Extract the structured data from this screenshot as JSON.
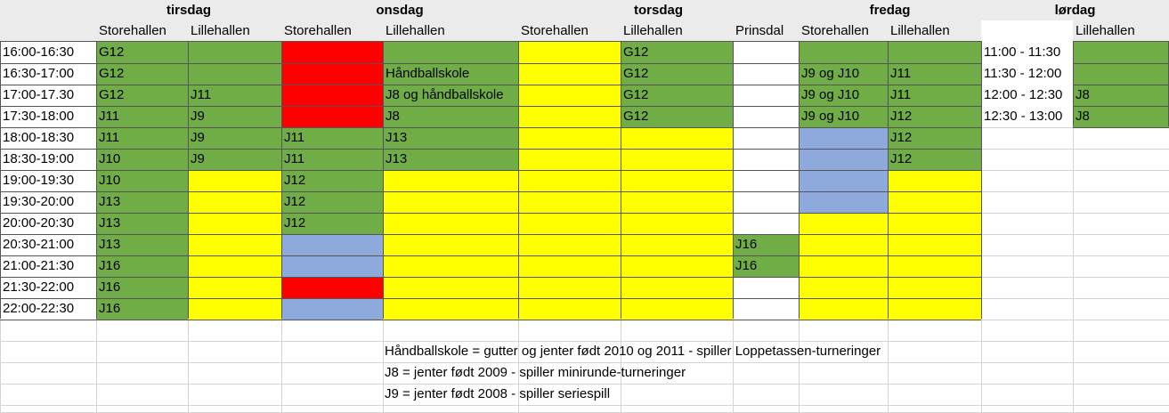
{
  "colors": {
    "green": "#70ad47",
    "red": "#ff0000",
    "yellow": "#ffff00",
    "blue": "#8ea9db",
    "white": "#ffffff",
    "header": "#ebebeb"
  },
  "days": [
    "tirsdag",
    "onsdag",
    "torsdag",
    "fredag",
    "lørdag"
  ],
  "halls": [
    "Storehallen",
    "Lillehallen",
    "Storehallen",
    "Lillehallen",
    "Storehallen",
    "Lillehallen",
    "Prinsdal",
    "Storehallen",
    "Lillehallen",
    "Lillehallen"
  ],
  "times": [
    "16:00-16:30",
    "16:30-17:00",
    "17:00-17.30",
    "17:30-18:00",
    "18:00-18:30",
    "18:30-19:00",
    "19:00-19:30",
    "19:30-20:00",
    "20:00-20:30",
    "20:30-21:00",
    "21:00-21:30",
    "21:30-22:00",
    "22:00-22:30"
  ],
  "rows": [
    [
      [
        "G12",
        "green"
      ],
      [
        "",
        "green"
      ],
      [
        "",
        "red"
      ],
      [
        "",
        "green"
      ],
      [
        "",
        "yellow"
      ],
      [
        "G12",
        "green"
      ],
      [
        "",
        "white"
      ],
      [
        "",
        "green"
      ],
      [
        "",
        "green"
      ]
    ],
    [
      [
        "G12",
        "green"
      ],
      [
        "",
        "green"
      ],
      [
        "",
        "red"
      ],
      [
        "Håndballskole",
        "green"
      ],
      [
        "",
        "yellow"
      ],
      [
        "G12",
        "green"
      ],
      [
        "",
        "white"
      ],
      [
        "J9 og J10",
        "green"
      ],
      [
        "J11",
        "green"
      ]
    ],
    [
      [
        "G12",
        "green"
      ],
      [
        "J11",
        "green"
      ],
      [
        "",
        "red"
      ],
      [
        "J8 og håndballskole",
        "green"
      ],
      [
        "",
        "yellow"
      ],
      [
        "G12",
        "green"
      ],
      [
        "",
        "white"
      ],
      [
        "J9 og J10",
        "green"
      ],
      [
        "J11",
        "green"
      ]
    ],
    [
      [
        "J11",
        "green"
      ],
      [
        "J9",
        "green"
      ],
      [
        "",
        "red"
      ],
      [
        "J8",
        "green"
      ],
      [
        "",
        "yellow"
      ],
      [
        "G12",
        "green"
      ],
      [
        "",
        "white"
      ],
      [
        "J9 og J10",
        "green"
      ],
      [
        "J12",
        "green"
      ]
    ],
    [
      [
        "J11",
        "green"
      ],
      [
        "J9",
        "green"
      ],
      [
        "J11",
        "green"
      ],
      [
        "J13",
        "green"
      ],
      [
        "",
        "yellow"
      ],
      [
        "",
        "yellow"
      ],
      [
        "",
        "white"
      ],
      [
        "",
        "blue"
      ],
      [
        "J12",
        "green"
      ]
    ],
    [
      [
        "J10",
        "green"
      ],
      [
        "J9",
        "green"
      ],
      [
        "J11",
        "green"
      ],
      [
        "J13",
        "green"
      ],
      [
        "",
        "yellow"
      ],
      [
        "",
        "yellow"
      ],
      [
        "",
        "white"
      ],
      [
        "",
        "blue"
      ],
      [
        "J12",
        "green"
      ]
    ],
    [
      [
        "J10",
        "green"
      ],
      [
        "",
        "yellow"
      ],
      [
        "J12",
        "green"
      ],
      [
        "",
        "yellow"
      ],
      [
        "",
        "yellow"
      ],
      [
        "",
        "yellow"
      ],
      [
        "",
        "white"
      ],
      [
        "",
        "blue"
      ],
      [
        "",
        "yellow"
      ]
    ],
    [
      [
        "J13",
        "green"
      ],
      [
        "",
        "yellow"
      ],
      [
        "J12",
        "green"
      ],
      [
        "",
        "yellow"
      ],
      [
        "",
        "yellow"
      ],
      [
        "",
        "yellow"
      ],
      [
        "",
        "white"
      ],
      [
        "",
        "blue"
      ],
      [
        "",
        "yellow"
      ]
    ],
    [
      [
        "J13",
        "green"
      ],
      [
        "",
        "yellow"
      ],
      [
        "J12",
        "green"
      ],
      [
        "",
        "yellow"
      ],
      [
        "",
        "yellow"
      ],
      [
        "",
        "yellow"
      ],
      [
        "",
        "white"
      ],
      [
        "",
        "yellow"
      ],
      [
        "",
        "yellow"
      ]
    ],
    [
      [
        "J13",
        "green"
      ],
      [
        "",
        "yellow"
      ],
      [
        "",
        "blue"
      ],
      [
        "",
        "yellow"
      ],
      [
        "",
        "yellow"
      ],
      [
        "",
        "yellow"
      ],
      [
        "J16",
        "green"
      ],
      [
        "",
        "yellow"
      ],
      [
        "",
        "yellow"
      ]
    ],
    [
      [
        "J16",
        "green"
      ],
      [
        "",
        "yellow"
      ],
      [
        "",
        "blue"
      ],
      [
        "",
        "yellow"
      ],
      [
        "",
        "yellow"
      ],
      [
        "",
        "yellow"
      ],
      [
        "J16",
        "green"
      ],
      [
        "",
        "yellow"
      ],
      [
        "",
        "yellow"
      ]
    ],
    [
      [
        "J16",
        "green"
      ],
      [
        "",
        "yellow"
      ],
      [
        "",
        "red"
      ],
      [
        "",
        "yellow"
      ],
      [
        "",
        "yellow"
      ],
      [
        "",
        "yellow"
      ],
      [
        "",
        "white"
      ],
      [
        "",
        "yellow"
      ],
      [
        "",
        "yellow"
      ]
    ],
    [
      [
        "J16",
        "green"
      ],
      [
        "",
        "yellow"
      ],
      [
        "",
        "blue"
      ],
      [
        "",
        "yellow"
      ],
      [
        "",
        "yellow"
      ],
      [
        "",
        "yellow"
      ],
      [
        "",
        "white"
      ],
      [
        "",
        "yellow"
      ],
      [
        "",
        "yellow"
      ]
    ]
  ],
  "saturday": [
    {
      "time": "11:00 - 11:30",
      "value": "",
      "color": "green"
    },
    {
      "time": "11:30 - 12:00",
      "value": "",
      "color": "green"
    },
    {
      "time": "12:00 - 12:30",
      "value": "J8",
      "color": "green"
    },
    {
      "time": "12:30 - 13:00",
      "value": "J8",
      "color": "green"
    }
  ],
  "notes": [
    "Håndballskole = gutter og jenter født 2010 og 2011 - spiller Loppetassen-turneringer",
    "J8 = jenter født 2009 - spiller minirunde-turneringer",
    "J9 = jenter født 2008 - spiller seriespill"
  ]
}
